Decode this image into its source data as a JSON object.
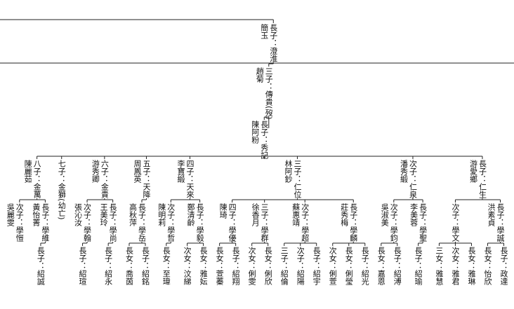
{
  "tree": {
    "label": "長子：澄淮",
    "spouse": "簡玉",
    "children": [
      {
        "label": "三子：傳貴(歿)",
        "spouse": "趙菊",
        "children": [
          {
            "label": "長子：秀記",
            "spouse": "陳阿粉",
            "children": [
              {
                "label": "長子：仁生",
                "spouse": "游愛鄉",
                "children": [
                  {
                    "label": "長子：學誠",
                    "spouse": "洪素貞",
                    "children": [
                      {
                        "label": "長子：政達"
                      },
                      {
                        "label": "長女：怡欣"
                      }
                    ]
                  },
                  {
                    "label": "次子：學文",
                    "children": [
                      {
                        "label": "長女：雅琳"
                      },
                      {
                        "label": "次女：雅君"
                      },
                      {
                        "label": "三女：雅慧"
                      }
                    ]
                  }
                ]
              },
              {
                "label": "次子：仁泉",
                "spouse": "潘秀緞",
                "children": [
                  {
                    "label": "長子：學聖",
                    "spouse": "李美蓉",
                    "children": [
                      {
                        "label": "長子：紹瑜"
                      }
                    ]
                  },
                  {
                    "label": "次子：學鈞",
                    "spouse": "吳淑美",
                    "children": [
                      {
                        "label": "長子：紹溥"
                      },
                      {
                        "label": "長女：嘉恩"
                      }
                    ]
                  }
                ]
              },
              {
                "label": "三子：仁位",
                "spouse": "林阿鈔",
                "children": [
                  {
                    "label": "長子：學麟",
                    "spouse": "莊秀梅",
                    "children": [
                      {
                        "label": "長子：紹光"
                      },
                      {
                        "label": "長女：俐瑩"
                      },
                      {
                        "label": "次女：俐萱"
                      }
                    ]
                  },
                  {
                    "label": "次子：學超",
                    "spouse": "蘇惠靖",
                    "children": [
                      {
                        "label": "長子：紹宇"
                      },
                      {
                        "label": "次子：紹陽"
                      },
                      {
                        "label": "三子：紹倫"
                      }
                    ]
                  },
                  {
                    "label": "三子：學群",
                    "spouse": "徐香月",
                    "children": [
                      {
                        "label": "長女：俐欣"
                      },
                      {
                        "label": "次女：俐雯"
                      }
                    ]
                  },
                  {
                    "label": "四子：學優",
                    "spouse": "陳琦",
                    "children": [
                      {
                        "label": "長子：紹翔"
                      },
                      {
                        "label": "長女：萱蓁"
                      }
                    ]
                  }
                ]
              },
              {
                "label": "四子：天來",
                "spouse": "李寶緞",
                "children": [
                  {
                    "label": "長子：學毅",
                    "spouse": "鄭清齡",
                    "children": [
                      {
                        "label": "長女：雅妘"
                      },
                      {
                        "label": "次女：汶綈"
                      }
                    ]
                  },
                  {
                    "label": "次子：學哲",
                    "spouse": "陳明莉",
                    "children": [
                      {
                        "label": "長女：至瑋"
                      }
                    ]
                  }
                ]
              },
              {
                "label": "五子：天降",
                "spouse": "周鳳英",
                "children": [
                  {
                    "label": "長子：學岳",
                    "spouse": "高秋萍",
                    "children": [
                      {
                        "label": "長子：紹銘"
                      },
                      {
                        "label": "長女：喬茵"
                      }
                    ]
                  }
                ]
              },
              {
                "label": "六子：金貴",
                "spouse": "游秀卿",
                "children": [
                  {
                    "label": "長子：學尚",
                    "spouse": "王美玲",
                    "children": [
                      {
                        "label": "長子：紹永"
                      }
                    ]
                  },
                  {
                    "label": "次子：學翰",
                    "spouse": "張沁汝",
                    "children": [
                      {
                        "label": "長子：紹瑄"
                      }
                    ]
                  }
                ]
              },
              {
                "label": "七子：金獅(幼亡)"
              },
              {
                "label": "八子：金萬",
                "spouse": "陳麗茹",
                "children": [
                  {
                    "label": "長子：學維",
                    "spouse": "黃怡菁",
                    "children": [
                      {
                        "label": "長子：紹誠"
                      }
                    ]
                  },
                  {
                    "label": "次子：學愷",
                    "spouse": "吳麗雯"
                  }
                ]
              }
            ]
          }
        ]
      }
    ]
  }
}
